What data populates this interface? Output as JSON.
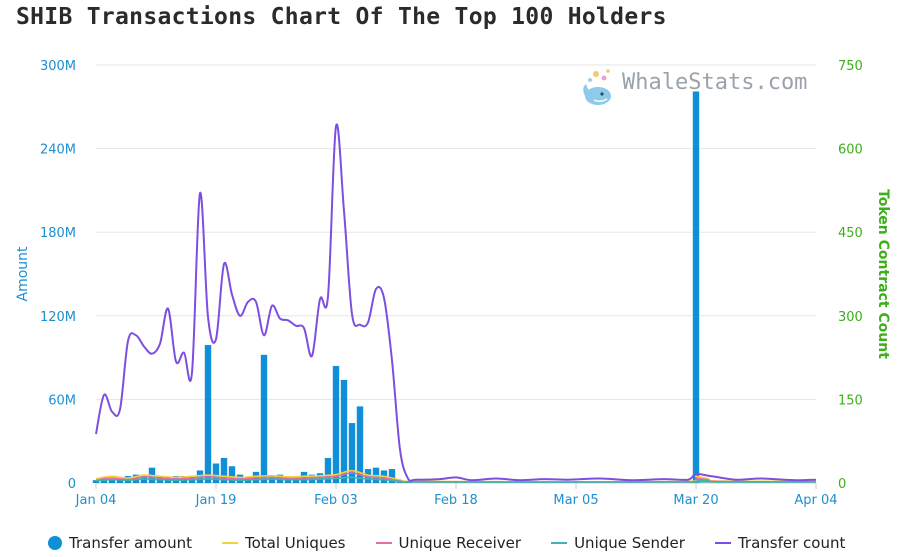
{
  "title": "SHIB Transactions Chart Of The Top 100 Holders",
  "watermark": "WhaleStats.com",
  "colors": {
    "transfer_amount": "#0e8fd8",
    "total_uniques": "#f2d33b",
    "unique_receiver": "#e86aa6",
    "unique_sender": "#3fb5b2",
    "transfer_count": "#7c4fe0",
    "left_axis": "#1e8fd0",
    "right_axis": "#3fae1c",
    "grid": "#e6e6e6"
  },
  "chart_data": {
    "type": "bar+line",
    "title": "SHIB Transactions Chart Of The Top 100 Holders",
    "ylabel": "Amount",
    "ylabel_right": "Token Contract Count",
    "ylim": [
      0,
      300000000
    ],
    "ylim_right": [
      0,
      750
    ],
    "yticks": [
      "0",
      "60M",
      "120M",
      "180M",
      "240M",
      "300M"
    ],
    "yticks_right": [
      "0",
      "150",
      "300",
      "450",
      "600",
      "750"
    ],
    "xticks": [
      "Jan 04",
      "Jan 19",
      "Feb 03",
      "Feb 18",
      "Mar 05",
      "Mar 20",
      "Apr 04"
    ],
    "x_start": "2022-01-04",
    "x_end": "2022-04-04",
    "legend_position": "bottom",
    "grid": true,
    "series": [
      {
        "name": "Transfer amount",
        "type": "bar",
        "axis": "left",
        "points": [
          [
            "2022-01-04",
            2000000
          ],
          [
            "2022-01-05",
            4000000
          ],
          [
            "2022-01-06",
            3000000
          ],
          [
            "2022-01-07",
            2000000
          ],
          [
            "2022-01-08",
            5000000
          ],
          [
            "2022-01-09",
            6000000
          ],
          [
            "2022-01-10",
            6000000
          ],
          [
            "2022-01-11",
            11000000
          ],
          [
            "2022-01-12",
            5000000
          ],
          [
            "2022-01-13",
            4000000
          ],
          [
            "2022-01-14",
            5000000
          ],
          [
            "2022-01-15",
            5000000
          ],
          [
            "2022-01-16",
            5000000
          ],
          [
            "2022-01-17",
            9000000
          ],
          [
            "2022-01-18",
            99000000
          ],
          [
            "2022-01-19",
            14000000
          ],
          [
            "2022-01-20",
            18000000
          ],
          [
            "2022-01-21",
            12000000
          ],
          [
            "2022-01-22",
            6000000
          ],
          [
            "2022-01-23",
            4000000
          ],
          [
            "2022-01-24",
            8000000
          ],
          [
            "2022-01-25",
            92000000
          ],
          [
            "2022-01-26",
            5000000
          ],
          [
            "2022-01-27",
            6000000
          ],
          [
            "2022-01-28",
            4000000
          ],
          [
            "2022-01-29",
            3000000
          ],
          [
            "2022-01-30",
            8000000
          ],
          [
            "2022-01-31",
            6000000
          ],
          [
            "2022-02-01",
            7000000
          ],
          [
            "2022-02-02",
            18000000
          ],
          [
            "2022-02-03",
            84000000
          ],
          [
            "2022-02-04",
            74000000
          ],
          [
            "2022-02-05",
            43000000
          ],
          [
            "2022-02-06",
            55000000
          ],
          [
            "2022-02-07",
            10000000
          ],
          [
            "2022-02-08",
            11000000
          ],
          [
            "2022-02-09",
            9000000
          ],
          [
            "2022-02-10",
            10000000
          ],
          [
            "2022-02-11",
            2000000
          ],
          [
            "2022-02-12",
            1000000
          ],
          [
            "2022-03-20",
            281000000
          ]
        ]
      },
      {
        "name": "Total Uniques",
        "type": "line",
        "axis": "right",
        "points": [
          [
            "2022-01-04",
            8
          ],
          [
            "2022-01-06",
            12
          ],
          [
            "2022-01-08",
            9
          ],
          [
            "2022-01-10",
            14
          ],
          [
            "2022-01-12",
            12
          ],
          [
            "2022-01-14",
            10
          ],
          [
            "2022-01-16",
            12
          ],
          [
            "2022-01-18",
            14
          ],
          [
            "2022-01-20",
            12
          ],
          [
            "2022-01-22",
            10
          ],
          [
            "2022-01-24",
            12
          ],
          [
            "2022-01-26",
            13
          ],
          [
            "2022-01-28",
            11
          ],
          [
            "2022-01-30",
            12
          ],
          [
            "2022-02-01",
            13
          ],
          [
            "2022-02-03",
            15
          ],
          [
            "2022-02-05",
            22
          ],
          [
            "2022-02-07",
            14
          ],
          [
            "2022-02-09",
            12
          ],
          [
            "2022-02-11",
            6
          ],
          [
            "2022-02-14",
            3
          ],
          [
            "2022-03-19",
            3
          ],
          [
            "2022-03-20",
            12
          ],
          [
            "2022-03-22",
            4
          ],
          [
            "2022-04-04",
            3
          ]
        ]
      },
      {
        "name": "Unique Receiver",
        "type": "line",
        "axis": "right",
        "points": [
          [
            "2022-01-04",
            5
          ],
          [
            "2022-01-06",
            9
          ],
          [
            "2022-01-08",
            6
          ],
          [
            "2022-01-10",
            11
          ],
          [
            "2022-01-12",
            9
          ],
          [
            "2022-01-14",
            7
          ],
          [
            "2022-01-16",
            9
          ],
          [
            "2022-01-18",
            11
          ],
          [
            "2022-01-20",
            9
          ],
          [
            "2022-01-22",
            7
          ],
          [
            "2022-01-24",
            9
          ],
          [
            "2022-01-26",
            10
          ],
          [
            "2022-01-28",
            8
          ],
          [
            "2022-01-30",
            9
          ],
          [
            "2022-02-01",
            10
          ],
          [
            "2022-02-03",
            12
          ],
          [
            "2022-02-05",
            18
          ],
          [
            "2022-02-07",
            11
          ],
          [
            "2022-02-09",
            9
          ],
          [
            "2022-02-11",
            4
          ],
          [
            "2022-02-14",
            2
          ],
          [
            "2022-03-19",
            2
          ],
          [
            "2022-03-20",
            9
          ],
          [
            "2022-03-22",
            3
          ],
          [
            "2022-04-04",
            2
          ]
        ]
      },
      {
        "name": "Unique Sender",
        "type": "line",
        "axis": "right",
        "points": [
          [
            "2022-01-04",
            4
          ],
          [
            "2022-01-06",
            6
          ],
          [
            "2022-01-08",
            5
          ],
          [
            "2022-01-10",
            7
          ],
          [
            "2022-01-12",
            6
          ],
          [
            "2022-01-14",
            5
          ],
          [
            "2022-01-16",
            6
          ],
          [
            "2022-01-18",
            7
          ],
          [
            "2022-01-20",
            6
          ],
          [
            "2022-01-22",
            5
          ],
          [
            "2022-01-24",
            6
          ],
          [
            "2022-01-26",
            7
          ],
          [
            "2022-01-28",
            6
          ],
          [
            "2022-01-30",
            6
          ],
          [
            "2022-02-01",
            7
          ],
          [
            "2022-02-03",
            8
          ],
          [
            "2022-02-05",
            10
          ],
          [
            "2022-02-07",
            7
          ],
          [
            "2022-02-09",
            6
          ],
          [
            "2022-02-11",
            3
          ],
          [
            "2022-02-14",
            2
          ],
          [
            "2022-03-19",
            2
          ],
          [
            "2022-03-20",
            6
          ],
          [
            "2022-03-22",
            2
          ],
          [
            "2022-04-04",
            2
          ]
        ]
      },
      {
        "name": "Transfer count",
        "type": "line",
        "axis": "right",
        "points": [
          [
            "2022-01-04",
            88
          ],
          [
            "2022-01-05",
            158
          ],
          [
            "2022-01-06",
            128
          ],
          [
            "2022-01-07",
            132
          ],
          [
            "2022-01-08",
            255
          ],
          [
            "2022-01-09",
            265
          ],
          [
            "2022-01-10",
            245
          ],
          [
            "2022-01-11",
            232
          ],
          [
            "2022-01-12",
            250
          ],
          [
            "2022-01-13",
            313
          ],
          [
            "2022-01-14",
            218
          ],
          [
            "2022-01-15",
            234
          ],
          [
            "2022-01-16",
            198
          ],
          [
            "2022-01-17",
            520
          ],
          [
            "2022-01-18",
            298
          ],
          [
            "2022-01-19",
            258
          ],
          [
            "2022-01-20",
            393
          ],
          [
            "2022-01-21",
            338
          ],
          [
            "2022-01-22",
            300
          ],
          [
            "2022-01-23",
            325
          ],
          [
            "2022-01-24",
            325
          ],
          [
            "2022-01-25",
            265
          ],
          [
            "2022-01-26",
            318
          ],
          [
            "2022-01-27",
            295
          ],
          [
            "2022-01-28",
            292
          ],
          [
            "2022-01-29",
            282
          ],
          [
            "2022-01-30",
            278
          ],
          [
            "2022-01-31",
            228
          ],
          [
            "2022-02-01",
            330
          ],
          [
            "2022-02-02",
            335
          ],
          [
            "2022-02-03",
            640
          ],
          [
            "2022-02-04",
            488
          ],
          [
            "2022-02-05",
            303
          ],
          [
            "2022-02-06",
            284
          ],
          [
            "2022-02-07",
            288
          ],
          [
            "2022-02-08",
            348
          ],
          [
            "2022-02-09",
            332
          ],
          [
            "2022-02-10",
            220
          ],
          [
            "2022-02-11",
            60
          ],
          [
            "2022-02-12",
            8
          ],
          [
            "2022-02-13",
            6
          ],
          [
            "2022-02-16",
            7
          ],
          [
            "2022-02-18",
            10
          ],
          [
            "2022-02-20",
            5
          ],
          [
            "2022-02-23",
            8
          ],
          [
            "2022-02-26",
            5
          ],
          [
            "2022-03-01",
            7
          ],
          [
            "2022-03-04",
            6
          ],
          [
            "2022-03-08",
            8
          ],
          [
            "2022-03-12",
            5
          ],
          [
            "2022-03-16",
            7
          ],
          [
            "2022-03-19",
            6
          ],
          [
            "2022-03-20",
            16
          ],
          [
            "2022-03-22",
            12
          ],
          [
            "2022-03-25",
            6
          ],
          [
            "2022-03-28",
            8
          ],
          [
            "2022-03-31",
            6
          ],
          [
            "2022-04-02",
            5
          ],
          [
            "2022-04-04",
            6
          ]
        ]
      }
    ]
  },
  "legend": {
    "items": [
      {
        "label": "Transfer amount",
        "color_key": "transfer_amount",
        "symbol": "dot"
      },
      {
        "label": "Total Uniques",
        "color_key": "total_uniques",
        "symbol": "line"
      },
      {
        "label": "Unique Receiver",
        "color_key": "unique_receiver",
        "symbol": "line"
      },
      {
        "label": "Unique Sender",
        "color_key": "unique_sender",
        "symbol": "line"
      },
      {
        "label": "Transfer count",
        "color_key": "transfer_count",
        "symbol": "line"
      }
    ]
  }
}
